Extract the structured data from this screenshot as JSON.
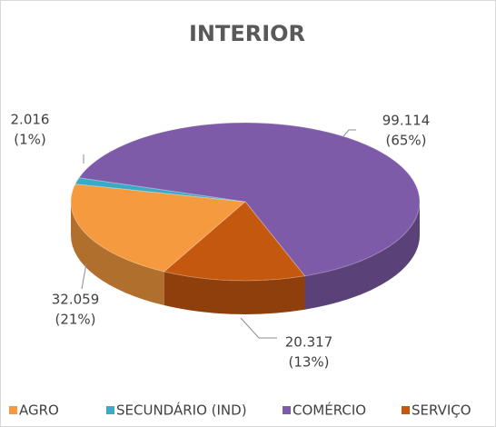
{
  "chart_data": {
    "type": "pie3d",
    "title": "INTERIOR",
    "categories": [
      "AGRO",
      "SECUNDÁRIO (IND)",
      "COMÉRCIO",
      "SERVIÇO"
    ],
    "values": [
      32059,
      2016,
      99114,
      20317
    ],
    "value_labels": [
      "32.059",
      "2.016",
      "99.114",
      "20.317"
    ],
    "percent_labels": [
      "(21%)",
      "(1%)",
      "(65%)",
      "(13%)"
    ],
    "colors": [
      "#f59a3e",
      "#3aaac6",
      "#7d5ba8",
      "#c5580f"
    ],
    "legend": "bottom"
  }
}
